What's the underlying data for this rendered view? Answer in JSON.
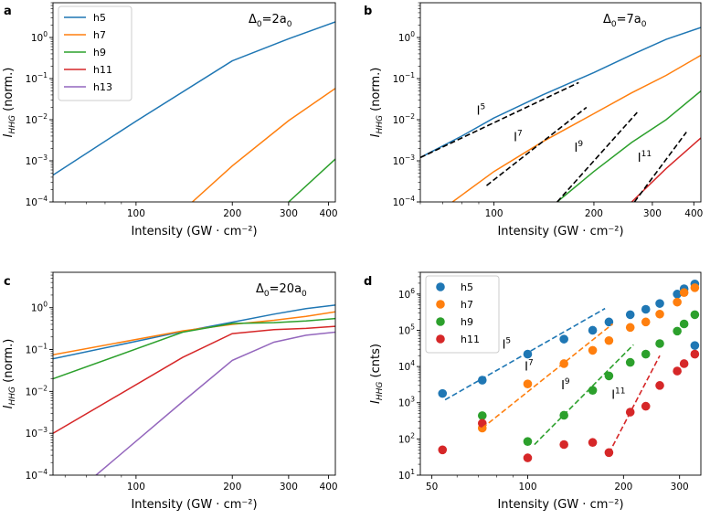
{
  "colors": {
    "h5": "#1f77b4",
    "h7": "#ff7f0e",
    "h9": "#2ca02c",
    "h11": "#d62728",
    "h13": "#9467bd"
  },
  "chart_data": [
    {
      "id": "a",
      "panel_label": "a",
      "type": "line",
      "annotation": {
        "base": "Δ",
        "sub": "0",
        "mid": "=2a",
        "sub2": "0"
      },
      "xlabel": "Intensity (GW · cm⁻²)",
      "ylabel": {
        "main": "I",
        "sub": "HHG",
        "rest": " (norm.)"
      },
      "xscale": "log",
      "yscale": "log",
      "xlim": [
        55,
        420
      ],
      "ylim": [
        0.0001,
        7
      ],
      "xticks": [
        {
          "v": 100,
          "label": "100"
        },
        {
          "v": 200,
          "label": "200"
        },
        {
          "v": 300,
          "label": "300"
        },
        {
          "v": 400,
          "label": "400"
        }
      ],
      "yticks": [
        {
          "v": 1,
          "base": "10",
          "exp": "0"
        },
        {
          "v": 0.1,
          "base": "10",
          "exp": "−1"
        },
        {
          "v": 0.01,
          "base": "10",
          "exp": "−2"
        },
        {
          "v": 0.001,
          "base": "10",
          "exp": "−3"
        },
        {
          "v": 0.0001,
          "base": "10",
          "exp": "−4"
        }
      ],
      "legend": {
        "position": "top-left",
        "entries": [
          "h5",
          "h7",
          "h9",
          "h11",
          "h13"
        ]
      },
      "series": [
        {
          "name": "h5",
          "x": [
            55,
            100,
            200,
            300,
            420
          ],
          "y": [
            0.00045,
            0.0092,
            0.27,
            0.93,
            2.4
          ]
        },
        {
          "name": "h7",
          "x": [
            150,
            200,
            300,
            420
          ],
          "y": [
            0.0001,
            0.00075,
            0.0095,
            0.058
          ]
        },
        {
          "name": "h9",
          "x": [
            300,
            420
          ],
          "y": [
            0.0001,
            0.0011
          ]
        }
      ]
    },
    {
      "id": "b",
      "panel_label": "b",
      "type": "line",
      "annotation": {
        "base": "Δ",
        "sub": "0",
        "mid": "=7a",
        "sub2": "0"
      },
      "xlabel": "Intensity (GW · cm⁻²)",
      "ylabel": {
        "main": "I",
        "sub": "HHG",
        "rest": " (norm.)"
      },
      "xscale": "log",
      "yscale": "log",
      "xlim": [
        60,
        420
      ],
      "ylim": [
        0.0001,
        7
      ],
      "xticks": [
        {
          "v": 100,
          "label": "100"
        },
        {
          "v": 200,
          "label": "200"
        },
        {
          "v": 300,
          "label": "300"
        },
        {
          "v": 400,
          "label": "400"
        }
      ],
      "yticks": [
        {
          "v": 1,
          "base": "10",
          "exp": "0"
        },
        {
          "v": 0.1,
          "base": "10",
          "exp": "−1"
        },
        {
          "v": 0.01,
          "base": "10",
          "exp": "−2"
        },
        {
          "v": 0.001,
          "base": "10",
          "exp": "−3"
        },
        {
          "v": 0.0001,
          "base": "10",
          "exp": "−4"
        }
      ],
      "series": [
        {
          "name": "h5",
          "x": [
            60,
            80,
            100,
            140,
            200,
            260,
            330,
            420
          ],
          "y": [
            0.0012,
            0.004,
            0.011,
            0.04,
            0.14,
            0.38,
            0.9,
            1.75
          ]
        },
        {
          "name": "h7",
          "x": [
            75,
            100,
            140,
            200,
            260,
            330,
            420
          ],
          "y": [
            0.0001,
            0.00055,
            0.0029,
            0.014,
            0.045,
            0.12,
            0.37
          ]
        },
        {
          "name": "h9",
          "x": [
            155,
            200,
            260,
            330,
            420
          ],
          "y": [
            0.0001,
            0.00055,
            0.0028,
            0.01,
            0.05
          ]
        },
        {
          "name": "h11",
          "x": [
            260,
            330,
            420
          ],
          "y": [
            0.0001,
            0.00065,
            0.0036
          ]
        }
      ],
      "guides": [
        {
          "label": {
            "base": "I",
            "exp": "5"
          },
          "x": [
            60,
            180
          ],
          "y": [
            0.0012,
            0.08
          ]
        },
        {
          "label": {
            "base": "I",
            "exp": "7"
          },
          "x": [
            95,
            190
          ],
          "y": [
            0.00025,
            0.02
          ]
        },
        {
          "label": {
            "base": "I",
            "exp": "9"
          },
          "x": [
            155,
            270
          ],
          "y": [
            0.0001,
            0.015
          ]
        },
        {
          "label": {
            "base": "I",
            "exp": "11"
          },
          "x": [
            265,
            380
          ],
          "y": [
            0.0001,
            0.005
          ]
        }
      ]
    },
    {
      "id": "c",
      "panel_label": "c",
      "type": "line",
      "annotation": {
        "base": "Δ",
        "sub": "0",
        "mid": "=20a",
        "sub2": "0"
      },
      "xlabel": "Intensity (GW · cm⁻²)",
      "ylabel": {
        "main": "I",
        "sub": "HHG",
        "rest": " (norm.)"
      },
      "xscale": "log",
      "yscale": "log",
      "xlim": [
        55,
        420
      ],
      "ylim": [
        0.0001,
        7
      ],
      "xticks": [
        {
          "v": 100,
          "label": "100"
        },
        {
          "v": 200,
          "label": "200"
        },
        {
          "v": 300,
          "label": "300"
        },
        {
          "v": 400,
          "label": "400"
        }
      ],
      "yticks": [
        {
          "v": 1,
          "base": "10",
          "exp": "0"
        },
        {
          "v": 0.1,
          "base": "10",
          "exp": "−1"
        },
        {
          "v": 0.01,
          "base": "10",
          "exp": "−2"
        },
        {
          "v": 0.001,
          "base": "10",
          "exp": "−3"
        },
        {
          "v": 0.0001,
          "base": "10",
          "exp": "−4"
        }
      ],
      "series": [
        {
          "name": "h5",
          "x": [
            55,
            140,
            200,
            270,
            340,
            420
          ],
          "y": [
            0.06,
            0.27,
            0.45,
            0.7,
            0.95,
            1.15
          ]
        },
        {
          "name": "h7",
          "x": [
            55,
            140,
            200,
            270,
            340,
            420
          ],
          "y": [
            0.075,
            0.28,
            0.4,
            0.5,
            0.62,
            0.8
          ]
        },
        {
          "name": "h9",
          "x": [
            55,
            140,
            200,
            270,
            340,
            420
          ],
          "y": [
            0.02,
            0.26,
            0.42,
            0.44,
            0.48,
            0.55
          ]
        },
        {
          "name": "h11",
          "x": [
            55,
            140,
            200,
            270,
            340,
            420
          ],
          "y": [
            0.001,
            0.065,
            0.24,
            0.3,
            0.32,
            0.36
          ]
        },
        {
          "name": "h13",
          "x": [
            75,
            140,
            200,
            270,
            340,
            420
          ],
          "y": [
            0.0001,
            0.0057,
            0.055,
            0.15,
            0.22,
            0.26
          ]
        }
      ]
    },
    {
      "id": "d",
      "panel_label": "d",
      "type": "scatter",
      "xlabel": "Intensity (GW · cm⁻²)",
      "ylabel": {
        "main": "I",
        "sub": "HHG",
        "rest": " (cnts)"
      },
      "xscale": "log",
      "yscale": "log",
      "xlim": [
        46,
        350
      ],
      "ylim": [
        10,
        4000000
      ],
      "xticks": [
        {
          "v": 50,
          "label": "50"
        },
        {
          "v": 100,
          "label": "100"
        },
        {
          "v": 200,
          "label": "200"
        },
        {
          "v": 300,
          "label": "300"
        }
      ],
      "yticks": [
        {
          "v": 1000000,
          "base": "10",
          "exp": "6"
        },
        {
          "v": 100000,
          "base": "10",
          "exp": "5"
        },
        {
          "v": 10000,
          "base": "10",
          "exp": "4"
        },
        {
          "v": 1000,
          "base": "10",
          "exp": "3"
        },
        {
          "v": 100,
          "base": "10",
          "exp": "2"
        },
        {
          "v": 10,
          "base": "10",
          "exp": "1"
        }
      ],
      "legend": {
        "position": "top-left",
        "entries": [
          "h5",
          "h7",
          "h9",
          "h11"
        ]
      },
      "series": [
        {
          "name": "h5",
          "x": [
            54,
            72,
            100,
            130,
            160,
            180,
            210,
            235,
            260,
            295,
            310,
            335,
            335
          ],
          "y": [
            1800,
            4200,
            22000,
            57000,
            100000,
            170000,
            270000,
            380000,
            550000,
            1000000,
            1400000,
            1900000,
            38000
          ]
        },
        {
          "name": "h7",
          "x": [
            72,
            100,
            130,
            160,
            180,
            210,
            235,
            260,
            295,
            310,
            335
          ],
          "y": [
            200,
            3300,
            12000,
            28000,
            52000,
            120000,
            170000,
            280000,
            600000,
            1100000,
            1500000
          ]
        },
        {
          "name": "h9",
          "x": [
            72,
            100,
            130,
            160,
            180,
            210,
            235,
            260,
            295,
            310,
            335
          ],
          "y": [
            440,
            85,
            450,
            2200,
            5500,
            13000,
            22000,
            43000,
            95000,
            150000,
            270000
          ]
        },
        {
          "name": "h11",
          "x": [
            54,
            72,
            100,
            130,
            160,
            180,
            210,
            235,
            260,
            295,
            310,
            335
          ],
          "y": [
            50,
            270,
            30,
            70,
            80,
            42,
            550,
            800,
            3000,
            7500,
            12000,
            22000
          ]
        }
      ],
      "guides": [
        {
          "series": "h5",
          "label": {
            "base": "I",
            "exp": "5"
          },
          "x": [
            55,
            175
          ],
          "y": [
            1200,
            400000
          ]
        },
        {
          "series": "h7",
          "label": {
            "base": "I",
            "exp": "7"
          },
          "x": [
            72,
            185
          ],
          "y": [
            200,
            150000
          ]
        },
        {
          "series": "h9",
          "label": {
            "base": "I",
            "exp": "9"
          },
          "x": [
            105,
            215
          ],
          "y": [
            70,
            40000
          ]
        },
        {
          "series": "h11",
          "label": {
            "base": "I",
            "exp": "11"
          },
          "x": [
            180,
            260
          ],
          "y": [
            40,
            20000
          ]
        }
      ]
    }
  ]
}
